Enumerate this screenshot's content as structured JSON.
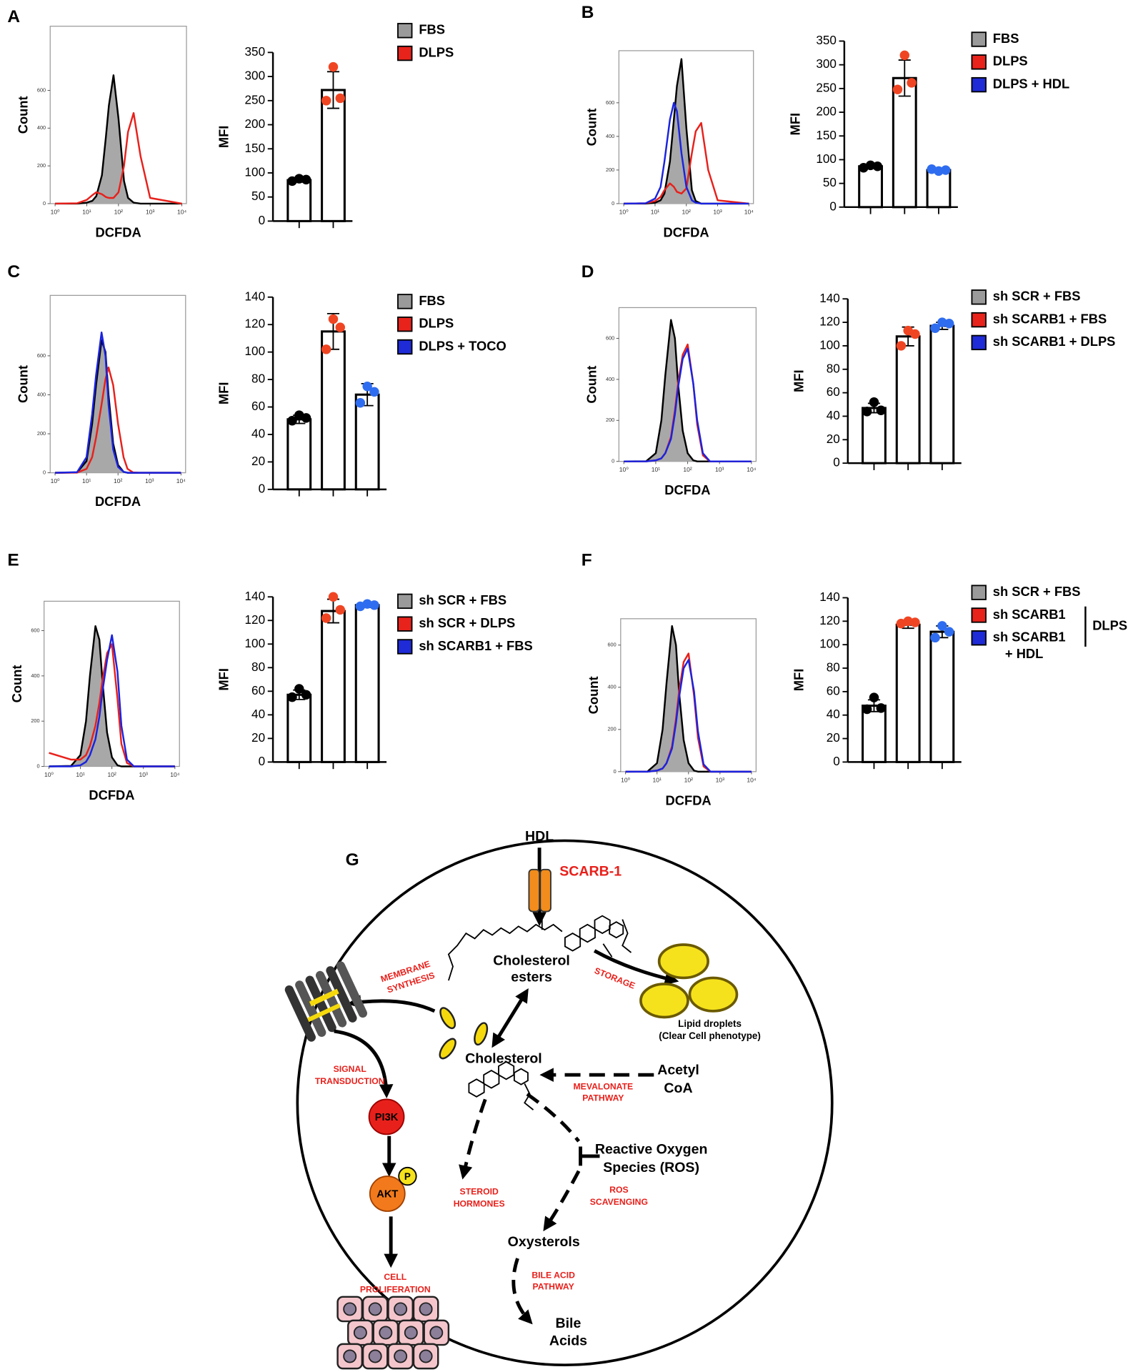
{
  "chart_data": [
    {
      "type": "line",
      "panel": "A",
      "x_label": "DCFDA",
      "y_label": "Count",
      "log_x": true,
      "x": [
        1,
        5,
        10,
        15,
        20,
        30,
        40,
        50,
        70,
        100,
        150,
        200,
        300,
        500,
        1000,
        10000
      ],
      "xlim": [
        0.7,
        14000
      ],
      "xticks": [
        {
          "value": 1,
          "label": "10⁰"
        },
        {
          "value": 10,
          "label": "10¹"
        },
        {
          "value": 100,
          "label": "10²"
        },
        {
          "value": 1000,
          "label": "10³"
        },
        {
          "value": 10000,
          "label": "10⁴"
        }
      ],
      "ylim": [
        0,
        940
      ],
      "yticks": [
        0,
        200,
        400,
        600
      ],
      "series": [
        {
          "color": "#000000",
          "fill": "#a8a8a8",
          "values": [
            0,
            0,
            5,
            15,
            40,
            150,
            350,
            520,
            680,
            450,
            120,
            30,
            5,
            0,
            0,
            0
          ]
        },
        {
          "color": "#e8201b",
          "values": [
            0,
            2,
            20,
            45,
            60,
            50,
            35,
            30,
            30,
            60,
            200,
            380,
            480,
            250,
            30,
            0
          ]
        }
      ]
    },
    {
      "type": "bar",
      "y_label": "MFI",
      "categories": [
        "FBS",
        "DLPS"
      ],
      "values": [
        85,
        272
      ],
      "errors": [
        4,
        38
      ],
      "points": [
        [
          83,
          88,
          86
        ],
        [
          250,
          320,
          255
        ]
      ],
      "colors": [
        "#000000",
        "#f04523"
      ],
      "legend_colors": [
        "#9a9a9a",
        "#e8231c"
      ],
      "ylim": [
        0,
        350
      ],
      "yticks": [
        0,
        50,
        100,
        150,
        200,
        250,
        300,
        350
      ]
    },
    {
      "type": "line",
      "panel": "B",
      "x_label": "DCFDA",
      "y_label": "Count",
      "log_x": true,
      "x": [
        1,
        5,
        10,
        15,
        20,
        30,
        40,
        50,
        70,
        100,
        150,
        200,
        300,
        500,
        1000,
        10000
      ],
      "xlim": [
        0.7,
        14000
      ],
      "xticks": [
        {
          "value": 1,
          "label": "10⁰"
        },
        {
          "value": 10,
          "label": "10¹"
        },
        {
          "value": 100,
          "label": "10²"
        },
        {
          "value": 1000,
          "label": "10³"
        },
        {
          "value": 10000,
          "label": "10⁴"
        }
      ],
      "ylim": [
        0,
        910
      ],
      "yticks": [
        0,
        200,
        400,
        600
      ],
      "series": [
        {
          "color": "#000000",
          "fill": "#a8a8a8",
          "values": [
            0,
            0,
            5,
            20,
            60,
            250,
            500,
            700,
            860,
            450,
            80,
            15,
            0,
            0,
            0,
            0
          ]
        },
        {
          "color": "#e8201b",
          "values": [
            0,
            2,
            15,
            40,
            80,
            120,
            100,
            70,
            60,
            90,
            300,
            430,
            480,
            200,
            20,
            0
          ]
        },
        {
          "color": "#1a23e0",
          "values": [
            0,
            2,
            30,
            100,
            250,
            500,
            600,
            550,
            300,
            100,
            20,
            5,
            0,
            0,
            0,
            0
          ]
        }
      ]
    },
    {
      "type": "bar",
      "y_label": "MFI",
      "categories": [
        "FBS",
        "DLPS",
        "DLPS + HDL"
      ],
      "values": [
        86,
        272,
        78
      ],
      "errors": [
        4,
        38,
        4
      ],
      "points": [
        [
          83,
          88,
          86
        ],
        [
          248,
          320,
          262
        ],
        [
          80,
          76,
          78
        ]
      ],
      "colors": [
        "#000000",
        "#f04523",
        "#2f6df0"
      ],
      "legend_colors": [
        "#9a9a9a",
        "#e8231c",
        "#1f2bd6"
      ],
      "ylim": [
        0,
        350
      ],
      "yticks": [
        0,
        50,
        100,
        150,
        200,
        250,
        300,
        350
      ]
    },
    {
      "type": "line",
      "panel": "C",
      "x_label": "DCFDA",
      "y_label": "Count",
      "log_x": true,
      "x": [
        1,
        5,
        10,
        15,
        20,
        30,
        40,
        50,
        70,
        100,
        150,
        200,
        300,
        500,
        1000,
        10000
      ],
      "xlim": [
        0.7,
        14000
      ],
      "xticks": [
        {
          "value": 1,
          "label": "10⁰"
        },
        {
          "value": 10,
          "label": "10¹"
        },
        {
          "value": 100,
          "label": "10²"
        },
        {
          "value": 1000,
          "label": "10³"
        },
        {
          "value": 10000,
          "label": "10⁴"
        }
      ],
      "ylim": [
        0,
        910
      ],
      "yticks": [
        0,
        200,
        400,
        600
      ],
      "series": [
        {
          "color": "#000000",
          "fill": "#a8a8a8",
          "values": [
            0,
            2,
            60,
            250,
            450,
            680,
            620,
            400,
            150,
            40,
            5,
            0,
            0,
            0,
            0,
            0
          ]
        },
        {
          "color": "#e8201b",
          "values": [
            0,
            1,
            20,
            80,
            180,
            350,
            480,
            540,
            450,
            250,
            80,
            20,
            2,
            0,
            0,
            0
          ]
        },
        {
          "color": "#1a23e0",
          "values": [
            0,
            3,
            80,
            300,
            500,
            720,
            600,
            350,
            120,
            30,
            5,
            0,
            0,
            0,
            0,
            0
          ]
        }
      ]
    },
    {
      "type": "bar",
      "y_label": "MFI",
      "categories": [
        "FBS",
        "DLPS",
        "DLPS + TOCO"
      ],
      "values": [
        51,
        115,
        69
      ],
      "errors": [
        3,
        13,
        8
      ],
      "points": [
        [
          50,
          54,
          52
        ],
        [
          102,
          124,
          118
        ],
        [
          63,
          75,
          71
        ]
      ],
      "colors": [
        "#000000",
        "#f04523",
        "#2f6df0"
      ],
      "legend_colors": [
        "#9a9a9a",
        "#e8231c",
        "#1f2bd6"
      ],
      "ylim": [
        0,
        140
      ],
      "yticks": [
        0,
        20,
        40,
        60,
        80,
        100,
        120,
        140
      ]
    },
    {
      "type": "line",
      "panel": "D",
      "x_label": "DCFDA",
      "y_label": "Count",
      "log_x": true,
      "x": [
        1,
        5,
        10,
        15,
        20,
        30,
        40,
        50,
        70,
        100,
        150,
        200,
        300,
        500,
        1000,
        10000
      ],
      "xlim": [
        0.7,
        14000
      ],
      "xticks": [
        {
          "value": 1,
          "label": "10⁰"
        },
        {
          "value": 10,
          "label": "10¹"
        },
        {
          "value": 100,
          "label": "10²"
        },
        {
          "value": 1000,
          "label": "10³"
        },
        {
          "value": 10000,
          "label": "10⁴"
        }
      ],
      "ylim": [
        0,
        750
      ],
      "yticks": [
        0,
        200,
        400,
        600
      ],
      "series": [
        {
          "color": "#000000",
          "fill": "#a8a8a8",
          "values": [
            0,
            1,
            40,
            200,
            420,
            690,
            600,
            380,
            150,
            40,
            5,
            0,
            0,
            0,
            0,
            0
          ]
        },
        {
          "color": "#e8201b",
          "values": [
            0,
            0,
            5,
            15,
            40,
            120,
            250,
            380,
            520,
            570,
            380,
            180,
            30,
            0,
            0,
            0
          ]
        },
        {
          "color": "#1a23e0",
          "values": [
            0,
            0,
            5,
            15,
            40,
            110,
            230,
            360,
            500,
            550,
            380,
            200,
            40,
            0,
            0,
            0
          ]
        }
      ]
    },
    {
      "type": "bar",
      "y_label": "MFI",
      "categories": [
        "sh SCR + FBS",
        "sh SCARB1 + FBS",
        "sh SCARB1 + DLPS"
      ],
      "values": [
        47,
        108,
        117
      ],
      "errors": [
        4,
        8,
        3
      ],
      "points": [
        [
          44,
          52,
          45
        ],
        [
          100,
          113,
          110
        ],
        [
          115,
          120,
          119
        ]
      ],
      "colors": [
        "#000000",
        "#f04523",
        "#2f6df0"
      ],
      "legend_colors": [
        "#9a9a9a",
        "#e8231c",
        "#1f2bd6"
      ],
      "ylim": [
        0,
        140
      ],
      "yticks": [
        0,
        20,
        40,
        60,
        80,
        100,
        120,
        140
      ]
    },
    {
      "type": "line",
      "panel": "E",
      "x_label": "DCFDA",
      "y_label": "Count",
      "log_x": true,
      "x": [
        1,
        5,
        10,
        15,
        20,
        30,
        40,
        50,
        70,
        100,
        150,
        200,
        300,
        500,
        1000,
        10000
      ],
      "xlim": [
        0.7,
        14000
      ],
      "xticks": [
        {
          "value": 1,
          "label": "10⁰"
        },
        {
          "value": 10,
          "label": "10¹"
        },
        {
          "value": 100,
          "label": "10²"
        },
        {
          "value": 1000,
          "label": "10³"
        },
        {
          "value": 10000,
          "label": "10⁴"
        }
      ],
      "ylim": [
        0,
        730
      ],
      "yticks": [
        0,
        200,
        400,
        600
      ],
      "series": [
        {
          "color": "#000000",
          "fill": "#a8a8a8",
          "values": [
            0,
            2,
            50,
            200,
            400,
            620,
            560,
            380,
            150,
            40,
            5,
            0,
            0,
            0,
            0,
            0
          ]
        },
        {
          "color": "#e8201b",
          "values": [
            60,
            30,
            30,
            50,
            90,
            180,
            280,
            380,
            500,
            540,
            300,
            100,
            15,
            0,
            0,
            0
          ]
        },
        {
          "color": "#1a23e0",
          "values": [
            0,
            0,
            5,
            20,
            50,
            120,
            220,
            330,
            470,
            580,
            420,
            180,
            30,
            0,
            0,
            0
          ]
        }
      ]
    },
    {
      "type": "bar",
      "y_label": "MFI",
      "categories": [
        "sh SCR + FBS",
        "sh SCR + DLPS",
        "sh SCARB1 + FBS"
      ],
      "values": [
        57,
        128,
        133
      ],
      "errors": [
        4,
        10,
        2
      ],
      "points": [
        [
          55,
          62,
          57
        ],
        [
          122,
          140,
          129
        ],
        [
          132,
          134,
          133
        ]
      ],
      "colors": [
        "#000000",
        "#f04523",
        "#2f6df0"
      ],
      "legend_colors": [
        "#9a9a9a",
        "#e8231c",
        "#1f2bd6"
      ],
      "ylim": [
        0,
        140
      ],
      "yticks": [
        0,
        20,
        40,
        60,
        80,
        100,
        120,
        140
      ]
    },
    {
      "type": "line",
      "panel": "F",
      "x_label": "DCFDA",
      "y_label": "Count",
      "log_x": true,
      "x": [
        1,
        5,
        10,
        15,
        20,
        30,
        40,
        50,
        70,
        100,
        150,
        200,
        300,
        500,
        1000,
        10000
      ],
      "xlim": [
        0.7,
        14000
      ],
      "xticks": [
        {
          "value": 1,
          "label": "10⁰"
        },
        {
          "value": 10,
          "label": "10¹"
        },
        {
          "value": 100,
          "label": "10²"
        },
        {
          "value": 1000,
          "label": "10³"
        },
        {
          "value": 10000,
          "label": "10⁴"
        }
      ],
      "ylim": [
        0,
        725
      ],
      "yticks": [
        0,
        200,
        400,
        600
      ],
      "series": [
        {
          "color": "#000000",
          "fill": "#a8a8a8",
          "values": [
            0,
            1,
            40,
            200,
            420,
            690,
            600,
            380,
            150,
            40,
            5,
            0,
            0,
            0,
            0,
            0
          ]
        },
        {
          "color": "#e8201b",
          "values": [
            0,
            0,
            5,
            15,
            40,
            120,
            250,
            380,
            520,
            560,
            360,
            160,
            25,
            0,
            0,
            0
          ]
        },
        {
          "color": "#1a23e0",
          "values": [
            0,
            0,
            5,
            15,
            40,
            110,
            230,
            350,
            490,
            530,
            380,
            190,
            35,
            0,
            0,
            0
          ]
        }
      ]
    },
    {
      "type": "bar",
      "y_label": "MFI",
      "categories": [
        "sh SCR + FBS",
        "sh SCARB1",
        "sh SCARB1 + HDL"
      ],
      "legend_group_label": "DLPS",
      "values": [
        48,
        117,
        111
      ],
      "errors": [
        5,
        3,
        5
      ],
      "points": [
        [
          45,
          55,
          46
        ],
        [
          118,
          120,
          119
        ],
        [
          106,
          116,
          111
        ]
      ],
      "colors": [
        "#000000",
        "#f04523",
        "#2f6df0"
      ],
      "legend_colors": [
        "#9a9a9a",
        "#e8231c",
        "#1f2bd6"
      ],
      "ylim": [
        0,
        140
      ],
      "yticks": [
        0,
        20,
        40,
        60,
        80,
        100,
        120,
        140
      ]
    }
  ],
  "diagram": {
    "panel": "G",
    "hdl": "HDL",
    "receptor": "SCARB-1",
    "cholesterol_esters": [
      "Cholesterol",
      "esters"
    ],
    "storage": "STORAGE",
    "lipid_droplets": [
      "Lipid droplets",
      "(Clear Cell phenotype)"
    ],
    "membrane_synthesis": [
      "MEMBRANE",
      "SYNTHESIS"
    ],
    "cholesterol": "Cholesterol",
    "signal_transduction": [
      "SIGNAL",
      "TRANSDUCTION"
    ],
    "pi3k": "PI3K",
    "akt": "AKT",
    "phospho": "P",
    "acetyl_coa": [
      "Acetyl",
      "CoA"
    ],
    "mevalonate_pathway": [
      "MEVALONATE",
      "PATHWAY"
    ],
    "ros": [
      "Reactive Oxygen",
      "Species (ROS)"
    ],
    "steroid_hormones": [
      "STEROID",
      "HORMONES"
    ],
    "ros_scavenging": [
      "ROS",
      "SCAVENGING"
    ],
    "oxysterols": "Oxysterols",
    "cell_proliferation": [
      "CELL",
      "PROLIFERATION"
    ],
    "bile_acid_pathway": [
      "BILE ACID",
      "PATHWAY"
    ],
    "bile_acids": [
      "Bile",
      "Acids"
    ]
  }
}
